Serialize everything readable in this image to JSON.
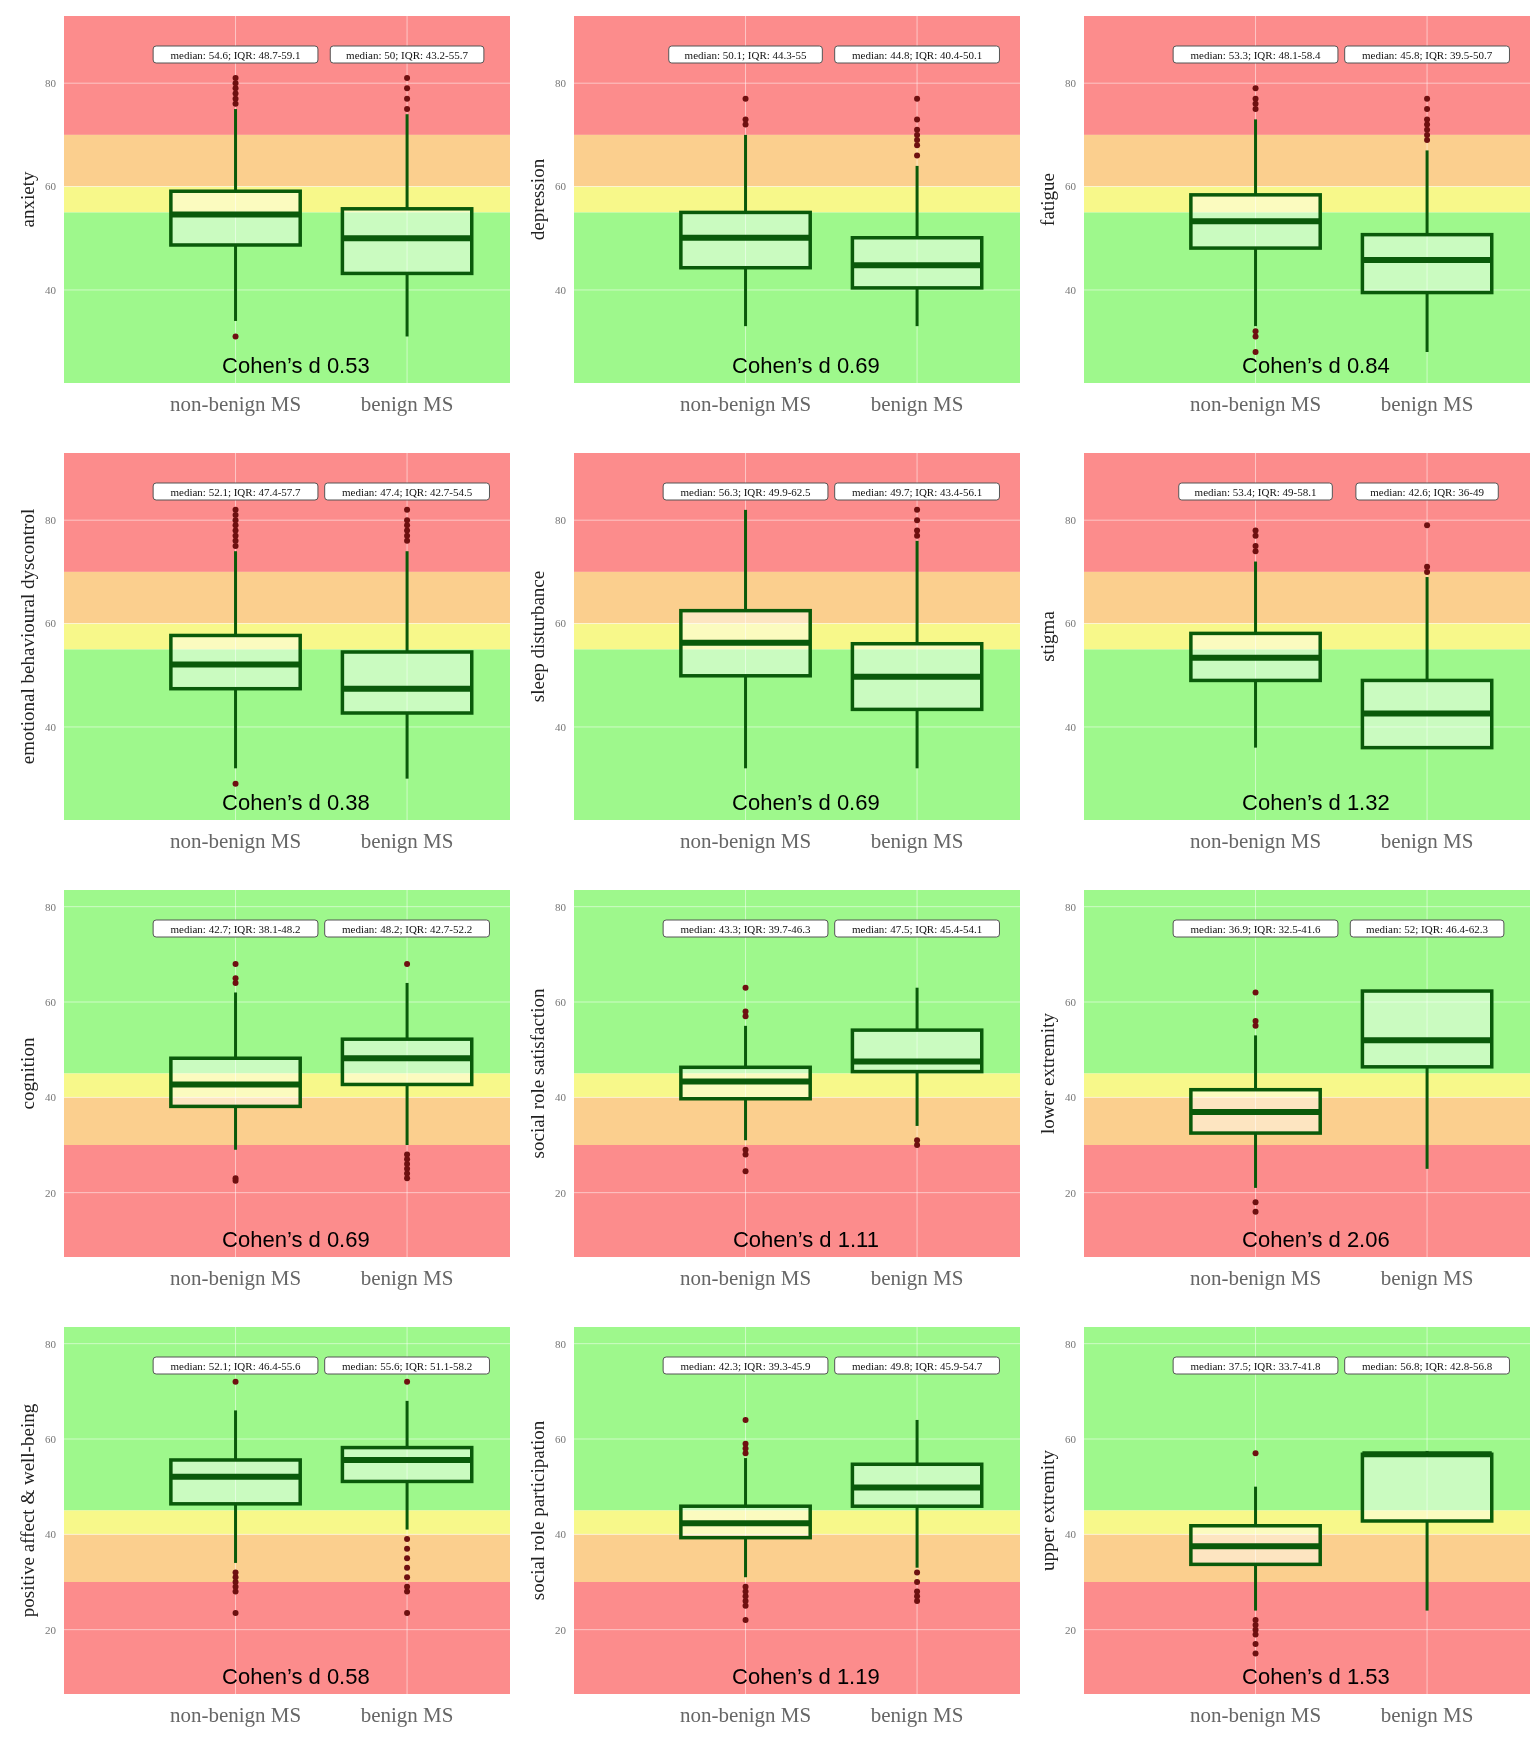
{
  "chart_data": [
    {
      "type": "box",
      "ylabel": "anxiety",
      "categories": [
        "non-benign MS",
        "benign MS"
      ],
      "color": "#0a5a0a",
      "ylim": [
        22,
        93
      ],
      "yticks": [
        40,
        60,
        80
      ],
      "grid": true,
      "bands": [
        {
          "axis": "y",
          "from": 70,
          "to": 93,
          "color": "#fc8c8c"
        },
        {
          "axis": "y",
          "from": 60,
          "to": 70,
          "color": "#fbcf8e"
        },
        {
          "axis": "y",
          "from": 55,
          "to": 60,
          "color": "#f7f88a"
        },
        {
          "axis": "y",
          "from": 22,
          "to": 55,
          "color": "#9ef88c"
        }
      ],
      "boxes": [
        {
          "low": 34,
          "q1": 48.7,
          "median": 54.6,
          "q3": 59.1,
          "high": 75,
          "outliers": [
            31,
            76,
            77,
            78,
            79,
            80,
            81
          ]
        },
        {
          "low": 31,
          "q1": 43.2,
          "median": 50,
          "q3": 55.7,
          "high": 74,
          "outliers": [
            75,
            77,
            79,
            81
          ]
        }
      ],
      "annotations": [
        "median: 54.6; IQR: 48.7-59.1",
        "median: 50; IQR: 43.2-55.7",
        "Cohen’s d 0.53"
      ]
    },
    {
      "type": "box",
      "ylabel": "depression",
      "categories": [
        "non-benign MS",
        "benign MS"
      ],
      "color": "#0a5a0a",
      "ylim": [
        22,
        93
      ],
      "yticks": [
        40,
        60,
        80
      ],
      "grid": true,
      "bands": [
        {
          "axis": "y",
          "from": 70,
          "to": 93,
          "color": "#fc8c8c"
        },
        {
          "axis": "y",
          "from": 60,
          "to": 70,
          "color": "#fbcf8e"
        },
        {
          "axis": "y",
          "from": 55,
          "to": 60,
          "color": "#f7f88a"
        },
        {
          "axis": "y",
          "from": 22,
          "to": 55,
          "color": "#9ef88c"
        }
      ],
      "boxes": [
        {
          "low": 33,
          "q1": 44.3,
          "median": 50.1,
          "q3": 55,
          "high": 70,
          "outliers": [
            72,
            73,
            77
          ]
        },
        {
          "low": 33,
          "q1": 40.4,
          "median": 44.8,
          "q3": 50.1,
          "high": 64,
          "outliers": [
            66,
            68,
            69,
            70,
            71,
            73,
            77
          ]
        }
      ],
      "annotations": [
        "median: 50.1; IQR: 44.3-55",
        "median: 44.8; IQR: 40.4-50.1",
        "Cohen’s d 0.69"
      ]
    },
    {
      "type": "box",
      "ylabel": "fatigue",
      "categories": [
        "non-benign MS",
        "benign MS"
      ],
      "color": "#0a5a0a",
      "ylim": [
        22,
        93
      ],
      "yticks": [
        40,
        60,
        80
      ],
      "grid": true,
      "bands": [
        {
          "axis": "y",
          "from": 70,
          "to": 93,
          "color": "#fc8c8c"
        },
        {
          "axis": "y",
          "from": 60,
          "to": 70,
          "color": "#fbcf8e"
        },
        {
          "axis": "y",
          "from": 55,
          "to": 60,
          "color": "#f7f88a"
        },
        {
          "axis": "y",
          "from": 22,
          "to": 55,
          "color": "#9ef88c"
        }
      ],
      "boxes": [
        {
          "low": 33,
          "q1": 48.1,
          "median": 53.3,
          "q3": 58.4,
          "high": 73,
          "outliers": [
            28,
            31,
            32,
            75,
            76,
            77,
            79
          ]
        },
        {
          "low": 28,
          "q1": 39.5,
          "median": 45.8,
          "q3": 50.7,
          "high": 67,
          "outliers": [
            69,
            70,
            71,
            72,
            73,
            75,
            77
          ]
        }
      ],
      "annotations": [
        "median: 53.3; IQR: 48.1-58.4",
        "median: 45.8; IQR: 39.5-50.7",
        "Cohen’s d 0.84"
      ]
    },
    {
      "type": "box",
      "ylabel": "emotional behavioural dyscontrol",
      "categories": [
        "non-benign MS",
        "benign MS"
      ],
      "color": "#0a5a0a",
      "ylim": [
        22,
        93
      ],
      "yticks": [
        40,
        60,
        80
      ],
      "grid": true,
      "bands": [
        {
          "axis": "y",
          "from": 70,
          "to": 93,
          "color": "#fc8c8c"
        },
        {
          "axis": "y",
          "from": 60,
          "to": 70,
          "color": "#fbcf8e"
        },
        {
          "axis": "y",
          "from": 55,
          "to": 60,
          "color": "#f7f88a"
        },
        {
          "axis": "y",
          "from": 22,
          "to": 55,
          "color": "#9ef88c"
        }
      ],
      "boxes": [
        {
          "low": 32,
          "q1": 47.4,
          "median": 52.1,
          "q3": 57.7,
          "high": 74,
          "outliers": [
            29,
            75,
            76,
            77,
            78,
            79,
            80,
            81,
            82
          ]
        },
        {
          "low": 30,
          "q1": 42.7,
          "median": 47.4,
          "q3": 54.5,
          "high": 74,
          "outliers": [
            76,
            77,
            78,
            79,
            80,
            82
          ]
        }
      ],
      "annotations": [
        "median: 52.1; IQR: 47.4-57.7",
        "median: 47.4; IQR: 42.7-54.5",
        "Cohen’s d 0.38"
      ]
    },
    {
      "type": "box",
      "ylabel": "sleep disturbance",
      "categories": [
        "non-benign MS",
        "benign MS"
      ],
      "color": "#0a5a0a",
      "ylim": [
        22,
        93
      ],
      "yticks": [
        40,
        60,
        80
      ],
      "grid": true,
      "bands": [
        {
          "axis": "y",
          "from": 70,
          "to": 93,
          "color": "#fc8c8c"
        },
        {
          "axis": "y",
          "from": 60,
          "to": 70,
          "color": "#fbcf8e"
        },
        {
          "axis": "y",
          "from": 55,
          "to": 60,
          "color": "#f7f88a"
        },
        {
          "axis": "y",
          "from": 22,
          "to": 55,
          "color": "#9ef88c"
        }
      ],
      "boxes": [
        {
          "low": 32,
          "q1": 49.9,
          "median": 56.3,
          "q3": 62.5,
          "high": 82
        },
        {
          "low": 32,
          "q1": 43.4,
          "median": 49.7,
          "q3": 56.1,
          "high": 76,
          "outliers": [
            77,
            78,
            80,
            82
          ]
        }
      ],
      "annotations": [
        "median: 56.3; IQR: 49.9-62.5",
        "median: 49.7; IQR: 43.4-56.1",
        "Cohen’s d 0.69"
      ]
    },
    {
      "type": "box",
      "ylabel": "stigma",
      "categories": [
        "non-benign MS",
        "benign MS"
      ],
      "color": "#0a5a0a",
      "ylim": [
        22,
        93
      ],
      "yticks": [
        40,
        60,
        80
      ],
      "grid": true,
      "bands": [
        {
          "axis": "y",
          "from": 70,
          "to": 93,
          "color": "#fc8c8c"
        },
        {
          "axis": "y",
          "from": 60,
          "to": 70,
          "color": "#fbcf8e"
        },
        {
          "axis": "y",
          "from": 55,
          "to": 60,
          "color": "#f7f88a"
        },
        {
          "axis": "y",
          "from": 22,
          "to": 55,
          "color": "#9ef88c"
        }
      ],
      "boxes": [
        {
          "low": 36,
          "q1": 49,
          "median": 53.4,
          "q3": 58.1,
          "high": 72,
          "outliers": [
            74,
            75,
            77,
            78
          ]
        },
        {
          "low": 36,
          "q1": 36,
          "median": 42.6,
          "q3": 49,
          "high": 69,
          "outliers": [
            70,
            71,
            79
          ]
        }
      ],
      "annotations": [
        "median: 53.4; IQR: 49-58.1",
        "median: 42.6; IQR: 36-49",
        "Cohen’s d 1.32"
      ]
    },
    {
      "type": "box",
      "ylabel": "cognition",
      "categories": [
        "non-benign MS",
        "benign MS"
      ],
      "color": "#0a5a0a",
      "ylim": [
        6.5,
        83.5
      ],
      "yticks": [
        20,
        40,
        60,
        80
      ],
      "grid": true,
      "bands": [
        {
          "axis": "y",
          "from": 45,
          "to": 83.5,
          "color": "#9ef88c"
        },
        {
          "axis": "y",
          "from": 40,
          "to": 45,
          "color": "#f7f88a"
        },
        {
          "axis": "y",
          "from": 30,
          "to": 40,
          "color": "#fbcf8e"
        },
        {
          "axis": "y",
          "from": 6.5,
          "to": 30,
          "color": "#fc8c8c"
        }
      ],
      "boxes": [
        {
          "low": 29,
          "q1": 38.1,
          "median": 42.7,
          "q3": 48.2,
          "high": 62,
          "outliers": [
            22.5,
            23,
            64,
            65,
            68
          ]
        },
        {
          "low": 30,
          "q1": 42.7,
          "median": 48.2,
          "q3": 52.2,
          "high": 64,
          "outliers": [
            23,
            24,
            25,
            26,
            27,
            28,
            68
          ]
        }
      ],
      "annotations": [
        "median: 42.7; IQR: 38.1-48.2",
        "median: 48.2; IQR: 42.7-52.2",
        "Cohen’s d 0.69"
      ]
    },
    {
      "type": "box",
      "ylabel": "social role satisfaction",
      "categories": [
        "non-benign MS",
        "benign MS"
      ],
      "color": "#0a5a0a",
      "ylim": [
        6.5,
        83.5
      ],
      "yticks": [
        20,
        40,
        60,
        80
      ],
      "grid": true,
      "bands": [
        {
          "axis": "y",
          "from": 45,
          "to": 83.5,
          "color": "#9ef88c"
        },
        {
          "axis": "y",
          "from": 40,
          "to": 45,
          "color": "#f7f88a"
        },
        {
          "axis": "y",
          "from": 30,
          "to": 40,
          "color": "#fbcf8e"
        },
        {
          "axis": "y",
          "from": 6.5,
          "to": 30,
          "color": "#fc8c8c"
        }
      ],
      "boxes": [
        {
          "low": 31,
          "q1": 39.7,
          "median": 43.3,
          "q3": 46.3,
          "high": 55,
          "outliers": [
            24.5,
            28,
            29,
            57,
            58,
            63
          ]
        },
        {
          "low": 34,
          "q1": 45.4,
          "median": 47.5,
          "q3": 54.1,
          "high": 63,
          "outliers": [
            30,
            31
          ]
        }
      ],
      "annotations": [
        "median: 43.3; IQR: 39.7-46.3",
        "median: 47.5; IQR: 45.4-54.1",
        "Cohen’s d 1.11"
      ]
    },
    {
      "type": "box",
      "ylabel": "lower extremity",
      "categories": [
        "non-benign MS",
        "benign MS"
      ],
      "color": "#0a5a0a",
      "ylim": [
        6.5,
        83.5
      ],
      "yticks": [
        20,
        40,
        60,
        80
      ],
      "grid": true,
      "bands": [
        {
          "axis": "y",
          "from": 45,
          "to": 83.5,
          "color": "#9ef88c"
        },
        {
          "axis": "y",
          "from": 40,
          "to": 45,
          "color": "#f7f88a"
        },
        {
          "axis": "y",
          "from": 30,
          "to": 40,
          "color": "#fbcf8e"
        },
        {
          "axis": "y",
          "from": 6.5,
          "to": 30,
          "color": "#fc8c8c"
        }
      ],
      "boxes": [
        {
          "low": 21,
          "q1": 32.5,
          "median": 36.9,
          "q3": 41.6,
          "high": 53,
          "outliers": [
            16,
            18,
            55,
            56,
            62
          ]
        },
        {
          "low": 25,
          "q1": 46.4,
          "median": 52,
          "q3": 62.3,
          "high": 62.3
        }
      ],
      "annotations": [
        "median: 36.9; IQR: 32.5-41.6",
        "median: 52; IQR: 46.4-62.3",
        "Cohen’s d 2.06"
      ]
    },
    {
      "type": "box",
      "ylabel": "positive affect & well-being",
      "categories": [
        "non-benign MS",
        "benign MS"
      ],
      "color": "#0a5a0a",
      "ylim": [
        6.5,
        83.5
      ],
      "yticks": [
        20,
        40,
        60,
        80
      ],
      "grid": true,
      "bands": [
        {
          "axis": "y",
          "from": 45,
          "to": 83.5,
          "color": "#9ef88c"
        },
        {
          "axis": "y",
          "from": 40,
          "to": 45,
          "color": "#f7f88a"
        },
        {
          "axis": "y",
          "from": 30,
          "to": 40,
          "color": "#fbcf8e"
        },
        {
          "axis": "y",
          "from": 6.5,
          "to": 30,
          "color": "#fc8c8c"
        }
      ],
      "boxes": [
        {
          "low": 34,
          "q1": 46.4,
          "median": 52.1,
          "q3": 55.6,
          "high": 66,
          "outliers": [
            23.5,
            28,
            29,
            30,
            31,
            32,
            72
          ]
        },
        {
          "low": 41,
          "q1": 51.1,
          "median": 55.6,
          "q3": 58.2,
          "high": 68,
          "outliers": [
            23.5,
            28,
            29,
            31,
            33,
            35,
            37,
            39,
            72
          ]
        }
      ],
      "annotations": [
        "median: 52.1; IQR: 46.4-55.6",
        "median: 55.6; IQR: 51.1-58.2",
        "Cohen’s d 0.58"
      ]
    },
    {
      "type": "box",
      "ylabel": "social role participation",
      "categories": [
        "non-benign MS",
        "benign MS"
      ],
      "color": "#0a5a0a",
      "ylim": [
        6.5,
        83.5
      ],
      "yticks": [
        20,
        40,
        60,
        80
      ],
      "grid": true,
      "bands": [
        {
          "axis": "y",
          "from": 45,
          "to": 83.5,
          "color": "#9ef88c"
        },
        {
          "axis": "y",
          "from": 40,
          "to": 45,
          "color": "#f7f88a"
        },
        {
          "axis": "y",
          "from": 30,
          "to": 40,
          "color": "#fbcf8e"
        },
        {
          "axis": "y",
          "from": 6.5,
          "to": 30,
          "color": "#fc8c8c"
        }
      ],
      "boxes": [
        {
          "low": 31,
          "q1": 39.3,
          "median": 42.3,
          "q3": 45.9,
          "high": 56,
          "outliers": [
            22,
            25,
            26,
            27,
            28,
            29,
            57,
            58,
            59,
            64
          ]
        },
        {
          "low": 33,
          "q1": 45.9,
          "median": 49.8,
          "q3": 54.7,
          "high": 64,
          "outliers": [
            26,
            27,
            28,
            30,
            32
          ]
        }
      ],
      "annotations": [
        "median: 42.3; IQR: 39.3-45.9",
        "median: 49.8; IQR: 45.9-54.7",
        "Cohen’s d 1.19"
      ]
    },
    {
      "type": "box",
      "ylabel": "upper extremity",
      "categories": [
        "non-benign MS",
        "benign MS"
      ],
      "color": "#0a5a0a",
      "ylim": [
        6.5,
        83.5
      ],
      "yticks": [
        20,
        40,
        60,
        80
      ],
      "grid": true,
      "bands": [
        {
          "axis": "y",
          "from": 45,
          "to": 83.5,
          "color": "#9ef88c"
        },
        {
          "axis": "y",
          "from": 40,
          "to": 45,
          "color": "#f7f88a"
        },
        {
          "axis": "y",
          "from": 30,
          "to": 40,
          "color": "#fbcf8e"
        },
        {
          "axis": "y",
          "from": 6.5,
          "to": 30,
          "color": "#fc8c8c"
        }
      ],
      "boxes": [
        {
          "low": 24,
          "q1": 33.7,
          "median": 37.5,
          "q3": 41.8,
          "high": 50,
          "outliers": [
            15,
            17,
            19,
            20,
            21,
            22,
            57
          ]
        },
        {
          "low": 24,
          "q1": 42.8,
          "median": 56.8,
          "q3": 56.8,
          "high": 57.5
        }
      ],
      "annotations": [
        "median: 37.5; IQR: 33.7-41.8",
        "median: 56.8; IQR: 42.8-56.8",
        "Cohen’s d 1.53"
      ]
    }
  ]
}
